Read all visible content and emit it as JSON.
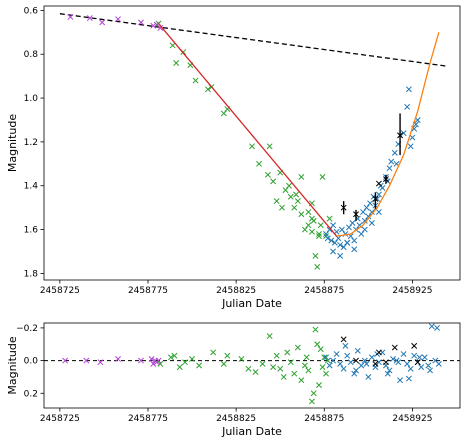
{
  "chart_data": [
    {
      "type": "scatter",
      "panel": "main",
      "xlabel": "Julian Date",
      "ylabel": "Magnitude",
      "xlim": [
        2458716,
        2458952
      ],
      "ylim": [
        1.83,
        0.58
      ],
      "y_inverted": true,
      "grid": false,
      "legend": "none",
      "xticks": [
        "2458725",
        "2458775",
        "2458825",
        "2458875",
        "2458925"
      ],
      "xtick_values": [
        2458725,
        2458775,
        2458825,
        2458875,
        2458925
      ],
      "yticks": [
        "0.6",
        "0.8",
        "1.0",
        "1.2",
        "1.4",
        "1.6",
        "1.8"
      ],
      "ytick_values": [
        0.6,
        0.8,
        1.0,
        1.2,
        1.4,
        1.6,
        1.8
      ],
      "colors": {
        "purple": "#b23fd6",
        "green": "#2ca02c",
        "blue": "#1f77b4",
        "black": "#000000",
        "red": "#d62728",
        "orange": "#ff7f0e",
        "dash": "#000000"
      },
      "reference_line": {
        "style": "dashed",
        "x": [
          2458725,
          2458945
        ],
        "y": [
          0.615,
          0.855
        ]
      },
      "fit_segments": [
        {
          "color": "red",
          "x": [
            2458781,
            2458882
          ],
          "y": [
            0.66,
            1.63
          ]
        },
        {
          "color": "orange",
          "x": [
            2458882,
            2458890,
            2458897,
            2458905,
            2458912,
            2458920,
            2458928,
            2458935,
            2458940
          ],
          "y": [
            1.63,
            1.62,
            1.58,
            1.5,
            1.4,
            1.26,
            1.06,
            0.84,
            0.7
          ]
        }
      ],
      "series": [
        {
          "color": "purple",
          "marker": "x",
          "x": [
            2458731,
            2458742,
            2458749,
            2458758,
            2458771,
            2458778,
            2458780,
            2458782
          ],
          "y": [
            0.63,
            0.635,
            0.655,
            0.64,
            0.655,
            0.67,
            0.665,
            0.68
          ]
        },
        {
          "color": "green",
          "marker": "x",
          "x": [
            2458781,
            2458789,
            2458791,
            2458795,
            2458799,
            2458802,
            2458809,
            2458811,
            2458818,
            2458820,
            2458834,
            2458838,
            2458844,
            2458846,
            2458848,
            2458850,
            2458853,
            2458855,
            2458856,
            2458858,
            2458860,
            2458862,
            2458864,
            2458866,
            2458866,
            2458868,
            2458869,
            2458870,
            2458871,
            2458872,
            2458873,
            2458874,
            2458876,
            2458878,
            2458851,
            2458843,
            2458872,
            2458868,
            2458868,
            2458859,
            2458862
          ],
          "y": [
            0.66,
            0.76,
            0.84,
            0.79,
            0.85,
            0.92,
            0.96,
            0.95,
            1.07,
            1.05,
            1.22,
            1.3,
            1.22,
            1.38,
            1.47,
            1.34,
            1.42,
            1.4,
            1.45,
            1.5,
            1.47,
            1.53,
            1.6,
            1.58,
            1.52,
            1.55,
            1.56,
            1.72,
            1.77,
            1.62,
            1.58,
            1.36,
            1.63,
            1.55,
            1.5,
            1.35,
            1.63,
            1.48,
            1.61,
            1.44,
            1.36
          ]
        },
        {
          "color": "blue",
          "marker": "x",
          "x": [
            2458876,
            2458877,
            2458878,
            2458879,
            2458880,
            2458881,
            2458882,
            2458883,
            2458884,
            2458885,
            2458886,
            2458887,
            2458888,
            2458889,
            2458890,
            2458891,
            2458892,
            2458893,
            2458894,
            2458895,
            2458896,
            2458897,
            2458898,
            2458899,
            2458900,
            2458901,
            2458902,
            2458903,
            2458904,
            2458905,
            2458906,
            2458907,
            2458908,
            2458910,
            2458912,
            2458913,
            2458915,
            2458917,
            2458918,
            2458920,
            2458922,
            2458924,
            2458925,
            2458926,
            2458927,
            2458928,
            2458880,
            2458884,
            2458888,
            2458892,
            2458898,
            2458902,
            2458906,
            2458911,
            2458916,
            2458923
          ],
          "y": [
            1.62,
            1.64,
            1.6,
            1.65,
            1.58,
            1.66,
            1.61,
            1.64,
            1.67,
            1.6,
            1.68,
            1.62,
            1.66,
            1.59,
            1.63,
            1.57,
            1.65,
            1.6,
            1.55,
            1.58,
            1.62,
            1.52,
            1.56,
            1.5,
            1.54,
            1.48,
            1.52,
            1.45,
            1.49,
            1.46,
            1.44,
            1.4,
            1.41,
            1.36,
            1.32,
            1.29,
            1.25,
            1.21,
            1.17,
            1.16,
            1.04,
            1.22,
            1.18,
            1.14,
            1.12,
            1.1,
            1.7,
            1.72,
            1.66,
            1.69,
            1.6,
            1.57,
            1.52,
            1.38,
            1.3,
            0.96
          ]
        },
        {
          "color": "black",
          "marker": "x",
          "x": [
            2458886,
            2458893,
            2458904,
            2458906,
            2458910,
            2458918
          ],
          "y": [
            1.5,
            1.53,
            1.46,
            1.39,
            1.37,
            1.17
          ]
        }
      ],
      "error_bars": [
        {
          "x": 2458886,
          "y_low": 1.47,
          "y_high": 1.53
        },
        {
          "x": 2458893,
          "y_low": 1.51,
          "y_high": 1.56
        },
        {
          "x": 2458904,
          "y_low": 1.43,
          "y_high": 1.51
        },
        {
          "x": 2458910,
          "y_low": 1.35,
          "y_high": 1.39
        },
        {
          "x": 2458918,
          "y_low": 1.07,
          "y_high": 1.26
        }
      ]
    },
    {
      "type": "scatter",
      "panel": "residuals",
      "xlabel": "Julian Date",
      "ylabel": "Magnitude",
      "xlim": [
        2458716,
        2458952
      ],
      "ylim": [
        0.29,
        -0.23
      ],
      "y_inverted": true,
      "grid": false,
      "legend": "none",
      "xticks": [
        "2458725",
        "2458775",
        "2458825",
        "2458875",
        "2458925"
      ],
      "xtick_values": [
        2458725,
        2458775,
        2458825,
        2458875,
        2458925
      ],
      "yticks": [
        "−0.2",
        "0.0",
        "0.2"
      ],
      "ytick_values": [
        -0.2,
        0.0,
        0.2
      ],
      "zero_line": {
        "style": "dashed",
        "y": 0.0
      },
      "series": [
        {
          "color": "purple",
          "marker": "x",
          "x": [
            2458728,
            2458740,
            2458748,
            2458758,
            2458771,
            2458777,
            2458778,
            2458779,
            2458780,
            2458781
          ],
          "y": [
            0.0,
            0.0,
            0.01,
            -0.01,
            0.0,
            -0.01,
            0.02,
            0.0,
            0.01,
            0.0
          ]
        },
        {
          "color": "green",
          "marker": "x",
          "x": [
            2458782,
            2458788,
            2458790,
            2458793,
            2458796,
            2458800,
            2458804,
            2458812,
            2458818,
            2458820,
            2458828,
            2458832,
            2458836,
            2458840,
            2458844,
            2458846,
            2458848,
            2458850,
            2458852,
            2458854,
            2458856,
            2458858,
            2458860,
            2458862,
            2458864,
            2458865,
            2458866,
            2458868,
            2458869,
            2458870,
            2458871,
            2458872,
            2458873,
            2458874,
            2458875,
            2458876,
            2458877
          ],
          "y": [
            0.02,
            -0.02,
            -0.03,
            0.04,
            0.01,
            -0.01,
            0.03,
            -0.05,
            0.02,
            -0.03,
            -0.01,
            0.05,
            0.07,
            0.02,
            -0.15,
            0.04,
            -0.03,
            0.05,
            0.1,
            -0.05,
            0.01,
            0.08,
            -0.08,
            0.12,
            0.03,
            -0.02,
            0.06,
            0.25,
            0.2,
            -0.19,
            -0.1,
            0.15,
            -0.07,
            0.04,
            -0.02,
            0.08,
            0.0
          ]
        },
        {
          "color": "blue",
          "marker": "x",
          "x": [
            2458876,
            2458878,
            2458880,
            2458882,
            2458884,
            2458886,
            2458888,
            2458890,
            2458892,
            2458894,
            2458896,
            2458898,
            2458900,
            2458902,
            2458904,
            2458906,
            2458908,
            2458910,
            2458912,
            2458914,
            2458916,
            2458918,
            2458920,
            2458922,
            2458924,
            2458926,
            2458928,
            2458930,
            2458932,
            2458934,
            2458936,
            2458938,
            2458940,
            2458887,
            2458893,
            2458899,
            2458905,
            2458911,
            2458917,
            2458923,
            2458929,
            2458935,
            2458939
          ],
          "y": [
            -0.02,
            0.03,
            0.0,
            -0.04,
            0.02,
            0.05,
            -0.03,
            0.01,
            0.08,
            -0.06,
            0.03,
            0.0,
            0.1,
            -0.02,
            0.04,
            0.01,
            -0.05,
            0.03,
            0.06,
            -0.01,
            0.0,
            0.12,
            -0.04,
            0.02,
            0.05,
            -0.03,
            0.01,
            0.04,
            -0.02,
            0.03,
            -0.21,
            0.0,
            0.02,
            -0.09,
            0.06,
            0.02,
            -0.04,
            0.08,
            0.01,
            0.11,
            -0.02,
            0.06,
            -0.2
          ]
        },
        {
          "color": "black",
          "marker": "x",
          "x": [
            2458886,
            2458893,
            2458904,
            2458906,
            2458910,
            2458915,
            2458926,
            2458928
          ],
          "y": [
            -0.13,
            0.0,
            0.02,
            -0.05,
            0.01,
            -0.08,
            -0.09,
            0.01
          ]
        }
      ]
    }
  ]
}
